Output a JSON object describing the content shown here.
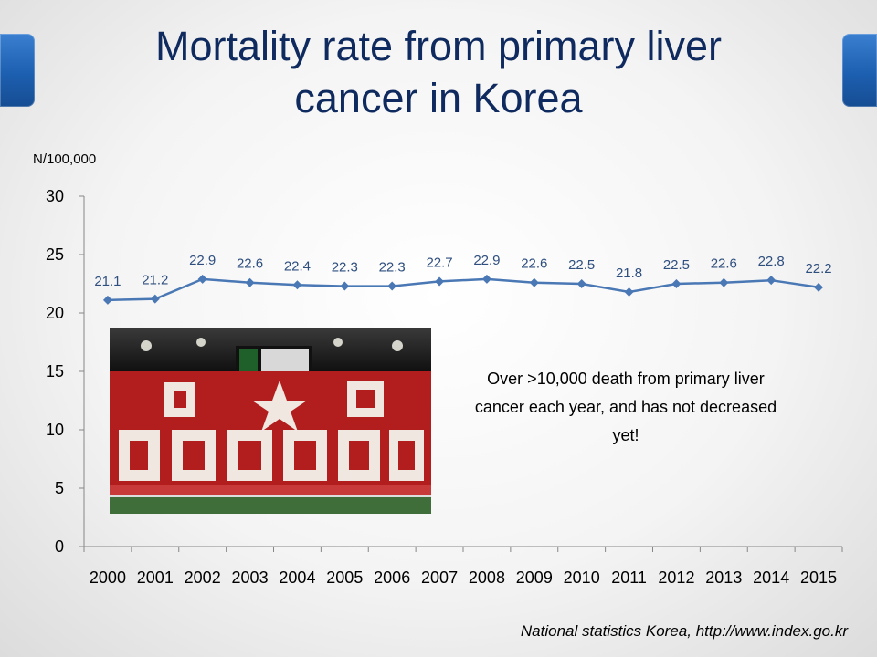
{
  "slide": {
    "title": "Mortality rate from primary liver\ncancer in Korea",
    "unit_label": "N/100,000",
    "note": "Over >10,000 death from primary liver cancer each year, and has not decreased yet!",
    "source": "National statistics Korea, http://www.index.go.kr"
  },
  "colors": {
    "title": "#0f2a5e",
    "series_line": "#4a78b5",
    "data_label": "#2f4f7f",
    "accent_tabs": "#1d5fb0"
  },
  "photo": {
    "description_icon": "stadium-crowd-card-stunt-image"
  },
  "chart_data": {
    "type": "line",
    "categories": [
      "2000",
      "2001",
      "2002",
      "2003",
      "2004",
      "2005",
      "2006",
      "2007",
      "2008",
      "2009",
      "2010",
      "2011",
      "2012",
      "2013",
      "2014",
      "2015"
    ],
    "series": [
      {
        "values": [
          21.1,
          21.2,
          22.9,
          22.6,
          22.4,
          22.3,
          22.3,
          22.7,
          22.9,
          22.6,
          22.5,
          21.8,
          22.5,
          22.6,
          22.8,
          22.2
        ]
      }
    ],
    "ylim": [
      0,
      30
    ],
    "yticks": [
      0,
      5,
      10,
      15,
      20,
      25,
      30
    ],
    "ylabel": "N/100,000",
    "xlabel": "",
    "grid": false,
    "legend": "none",
    "data_labels": true,
    "marker": "diamond"
  }
}
